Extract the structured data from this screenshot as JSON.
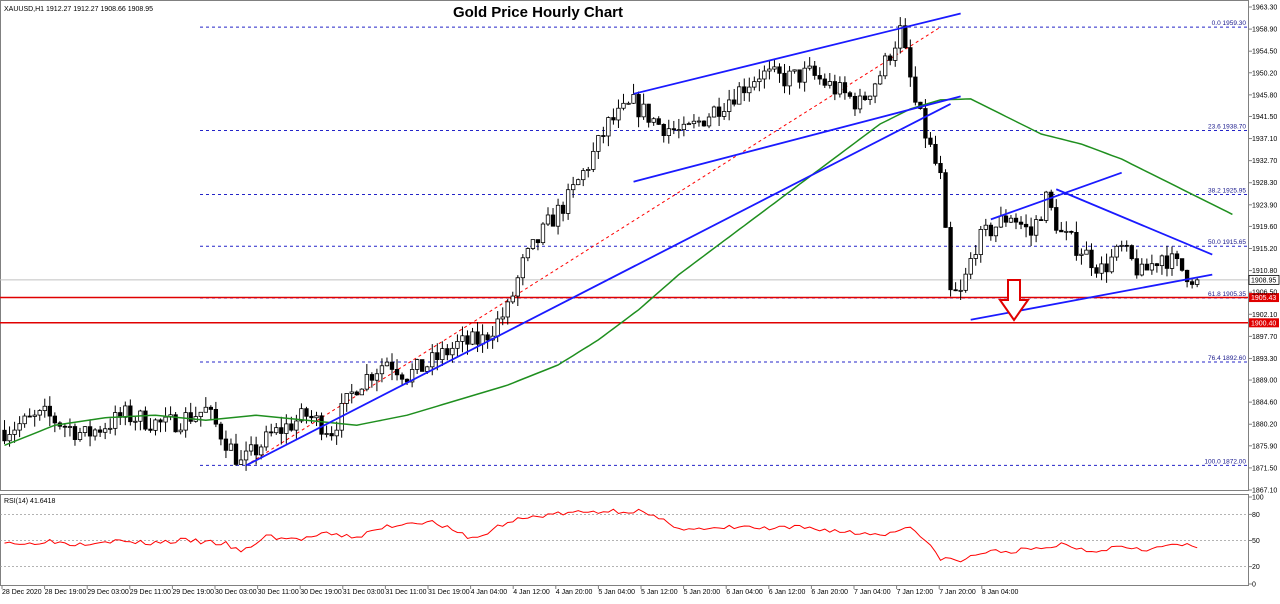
{
  "symbol_info": "XAUUSD,H1  1912.27 1912.27 1908.66 1908.95",
  "title": "Gold Price Hourly Chart",
  "rsi_label": "RSI(14) 41.6418",
  "colors": {
    "bull_candle": "#ffffff",
    "bear_candle": "#000000",
    "moving_average": "#1f8f1f",
    "trend_line": "#1a1aff",
    "fib_line": "#2424c8",
    "support_line": "#e00000",
    "rsi_line": "#ff0000",
    "arrow": "#e00000",
    "current_price_line": "#c0c0c0"
  },
  "chart_data": [
    {
      "type": "candlestick",
      "title": "Gold Price Hourly Chart",
      "symbol": "XAUUSD,H1",
      "ylim": [
        1867.1,
        1963.3
      ],
      "y_ticks": [
        "1963.30",
        "1958.90",
        "1954.50",
        "1950.20",
        "1945.80",
        "1941.50",
        "1937.10",
        "1932.70",
        "1928.30",
        "1923.90",
        "1919.60",
        "1915.20",
        "1910.80",
        "1906.50",
        "1902.10",
        "1897.70",
        "1893.30",
        "1889.00",
        "1884.60",
        "1880.20",
        "1875.90",
        "1871.50",
        "1867.10"
      ],
      "x_ticks": [
        "28 Dec 2020",
        "28 Dec 19:00",
        "29 Dec 03:00",
        "29 Dec 11:00",
        "29 Dec 19:00",
        "30 Dec 03:00",
        "30 Dec 11:00",
        "30 Dec 19:00",
        "31 Dec 03:00",
        "31 Dec 11:00",
        "31 Dec 19:00",
        "4 Jan 04:00",
        "4 Jan 12:00",
        "4 Jan 20:00",
        "5 Jan 04:00",
        "5 Jan 12:00",
        "5 Jan 20:00",
        "6 Jan 04:00",
        "6 Jan 12:00",
        "6 Jan 20:00",
        "7 Jan 04:00",
        "7 Jan 12:00",
        "7 Jan 20:00",
        "8 Jan 04:00"
      ],
      "price_anchors": [
        [
          0,
          1879
        ],
        [
          8,
          1882
        ],
        [
          16,
          1878
        ],
        [
          24,
          1882
        ],
        [
          32,
          1880
        ],
        [
          40,
          1883
        ],
        [
          47,
          1872.3
        ],
        [
          53,
          1878
        ],
        [
          60,
          1882
        ],
        [
          65,
          1879
        ],
        [
          70,
          1888
        ],
        [
          76,
          1893
        ],
        [
          80,
          1890
        ],
        [
          84,
          1892
        ],
        [
          90,
          1896
        ],
        [
          95,
          1897
        ],
        [
          100,
          1903
        ],
        [
          103,
          1912
        ],
        [
          108,
          1920
        ],
        [
          112,
          1925
        ],
        [
          116,
          1932
        ],
        [
          120,
          1940
        ],
        [
          125,
          1944
        ],
        [
          130,
          1940
        ],
        [
          135,
          1938
        ],
        [
          140,
          1942
        ],
        [
          145,
          1946
        ],
        [
          150,
          1950
        ],
        [
          155,
          1949
        ],
        [
          160,
          1950
        ],
        [
          165,
          1947
        ],
        [
          170,
          1944
        ],
        [
          174,
          1950
        ],
        [
          178,
          1958.5
        ],
        [
          181,
          1944
        ],
        [
          184,
          1935
        ],
        [
          186,
          1929
        ],
        [
          188,
          1906
        ],
        [
          190,
          1906
        ],
        [
          193,
          1916
        ],
        [
          196,
          1919
        ],
        [
          200,
          1922
        ],
        [
          204,
          1918
        ],
        [
          207,
          1925
        ],
        [
          210,
          1918
        ],
        [
          214,
          1915
        ],
        [
          218,
          1911
        ],
        [
          222,
          1915
        ],
        [
          226,
          1910
        ],
        [
          230,
          1914
        ],
        [
          234,
          1911
        ],
        [
          237,
          1908.95
        ]
      ],
      "moving_average": [
        [
          0,
          1876
        ],
        [
          10,
          1880
        ],
        [
          20,
          1881.5
        ],
        [
          30,
          1882
        ],
        [
          40,
          1881
        ],
        [
          50,
          1882
        ],
        [
          60,
          1881
        ],
        [
          70,
          1880
        ],
        [
          80,
          1882
        ],
        [
          90,
          1885
        ],
        [
          100,
          1888
        ],
        [
          110,
          1892
        ],
        [
          118,
          1897
        ],
        [
          126,
          1903
        ],
        [
          134,
          1910
        ],
        [
          142,
          1916
        ],
        [
          150,
          1922
        ],
        [
          158,
          1928
        ],
        [
          166,
          1934
        ],
        [
          174,
          1940
        ],
        [
          180,
          1943
        ],
        [
          186,
          1944.8
        ],
        [
          192,
          1945
        ],
        [
          198,
          1942
        ],
        [
          206,
          1938
        ],
        [
          214,
          1936
        ],
        [
          222,
          1933
        ],
        [
          230,
          1929
        ],
        [
          238,
          1925
        ],
        [
          244,
          1922
        ]
      ],
      "trend_lines": [
        {
          "name": "rising-support",
          "from": [
            48,
            1872
          ],
          "to": [
            188,
            1944
          ]
        },
        {
          "name": "channel-upper",
          "from": [
            125,
            1946
          ],
          "to": [
            190,
            1962
          ]
        },
        {
          "name": "channel-lower",
          "from": [
            125,
            1928.5
          ],
          "to": [
            190,
            1945.5
          ]
        },
        {
          "name": "triangle-upper",
          "from": [
            209,
            1927
          ],
          "to": [
            240,
            1914
          ]
        },
        {
          "name": "triangle-lower",
          "from": [
            192,
            1901
          ],
          "to": [
            240,
            1910
          ]
        },
        {
          "name": "triangle-top-extension",
          "from": [
            196,
            1921
          ],
          "to": [
            222,
            1930.3
          ]
        }
      ],
      "fib_levels": [
        {
          "label": "0.0 1959.30",
          "value": 1959.3
        },
        {
          "label": "23.6 1938.70",
          "value": 1938.7
        },
        {
          "label": "38.2 1925.95",
          "value": 1925.95
        },
        {
          "label": "50.0 1915.65",
          "value": 1915.65
        },
        {
          "label": "61.8 1905.35",
          "value": 1905.35
        },
        {
          "label": "76.4 1892.60",
          "value": 1892.6
        },
        {
          "label": "100.0 1872.00",
          "value": 1872.0
        }
      ],
      "fib_diagonal": {
        "from": [
          48,
          1872
        ],
        "to": [
          186,
          1959.3
        ]
      },
      "support_levels": [
        {
          "label": "1905.43",
          "value": 1905.43
        },
        {
          "label": "1900.40",
          "value": 1900.4
        }
      ],
      "current_price": {
        "label": "1908.95",
        "value": 1908.95
      },
      "arrow_direction": "down"
    },
    {
      "type": "line",
      "title": "RSI(14) 41.6418",
      "ylim": [
        0,
        100
      ],
      "y_ticks": [
        "100",
        "80",
        "50",
        "20",
        "0"
      ],
      "levels": [
        80,
        50,
        20
      ],
      "values_anchors": [
        [
          0,
          50
        ],
        [
          4,
          45
        ],
        [
          8,
          50
        ],
        [
          14,
          46
        ],
        [
          20,
          50
        ],
        [
          28,
          47
        ],
        [
          36,
          50
        ],
        [
          44,
          46
        ],
        [
          47,
          36
        ],
        [
          52,
          55
        ],
        [
          58,
          51
        ],
        [
          64,
          57
        ],
        [
          70,
          54
        ],
        [
          76,
          66
        ],
        [
          82,
          72
        ],
        [
          86,
          70
        ],
        [
          90,
          58
        ],
        [
          94,
          52
        ],
        [
          98,
          66
        ],
        [
          102,
          74
        ],
        [
          108,
          80
        ],
        [
          114,
          82
        ],
        [
          120,
          84
        ],
        [
          126,
          84
        ],
        [
          130,
          74
        ],
        [
          135,
          64
        ],
        [
          140,
          62
        ],
        [
          146,
          66
        ],
        [
          152,
          63
        ],
        [
          158,
          65
        ],
        [
          164,
          62
        ],
        [
          170,
          58
        ],
        [
          176,
          58
        ],
        [
          180,
          68
        ],
        [
          183,
          48
        ],
        [
          186,
          30
        ],
        [
          190,
          26
        ],
        [
          194,
          36
        ],
        [
          200,
          38
        ],
        [
          206,
          40
        ],
        [
          210,
          46
        ],
        [
          216,
          38
        ],
        [
          222,
          44
        ],
        [
          228,
          40
        ],
        [
          233,
          46
        ],
        [
          237,
          41.6
        ]
      ]
    }
  ]
}
